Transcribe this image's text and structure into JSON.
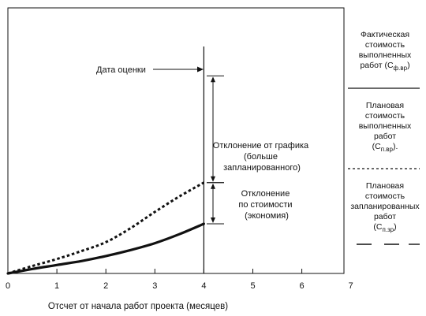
{
  "chart_data": {
    "type": "line",
    "title": "",
    "xlabel": "Отсчет от начала работ проекта (месяцев)",
    "ylabel": "",
    "xlim": [
      0,
      7
    ],
    "x_ticks": [
      "0",
      "1",
      "2",
      "3",
      "4",
      "5",
      "6",
      "7"
    ],
    "grid": false,
    "series": [
      {
        "name": "Фактическая стоимость выполненных работ (Сф.вр)",
        "style": "thick-solid",
        "x": [
          0,
          0.5,
          1,
          1.5,
          2,
          2.5,
          3,
          3.5,
          4
        ],
        "y": [
          0,
          0.09,
          0.17,
          0.25,
          0.35,
          0.47,
          0.61,
          0.79,
          1.0
        ]
      },
      {
        "name": "Плановая стоимость выполненных работ (Сп.вр)",
        "style": "dotted",
        "x": [
          0,
          0.5,
          1,
          1.5,
          2,
          2.5,
          3,
          3.5,
          4
        ],
        "y": [
          0,
          0.15,
          0.29,
          0.45,
          0.63,
          0.91,
          1.24,
          1.55,
          1.83
        ]
      }
    ],
    "annotations": {
      "evaluation_date": {
        "x": 4,
        "label": "Дата оценки"
      },
      "schedule_variance": {
        "lines": [
          "Отклонение от графика",
          "(больше",
          "запланированного)"
        ],
        "y_range": [
          1.83,
          3.98
        ]
      },
      "cost_variance": {
        "lines": [
          "Отклонение",
          "по стоимости",
          "(экономия)"
        ],
        "y_range": [
          1.0,
          1.83
        ]
      }
    },
    "legend": {
      "placement": "right",
      "items": [
        {
          "lines": [
            "Фактическая",
            "стоимость",
            "выполненных",
            "работ (С"
          ],
          "sub": "ф.вр",
          "tail": ")",
          "marker": "solid"
        },
        {
          "lines": [
            "Плановая",
            "стоимость",
            "выполненных",
            "работ",
            "(С"
          ],
          "sub": "п.вр",
          "tail": ").",
          "marker": "dotted"
        },
        {
          "lines": [
            "Плановая",
            "стоимость",
            "запланированных",
            "работ",
            "(С"
          ],
          "sub": "п.зр",
          "tail": ")",
          "marker": "dashed"
        }
      ]
    }
  }
}
